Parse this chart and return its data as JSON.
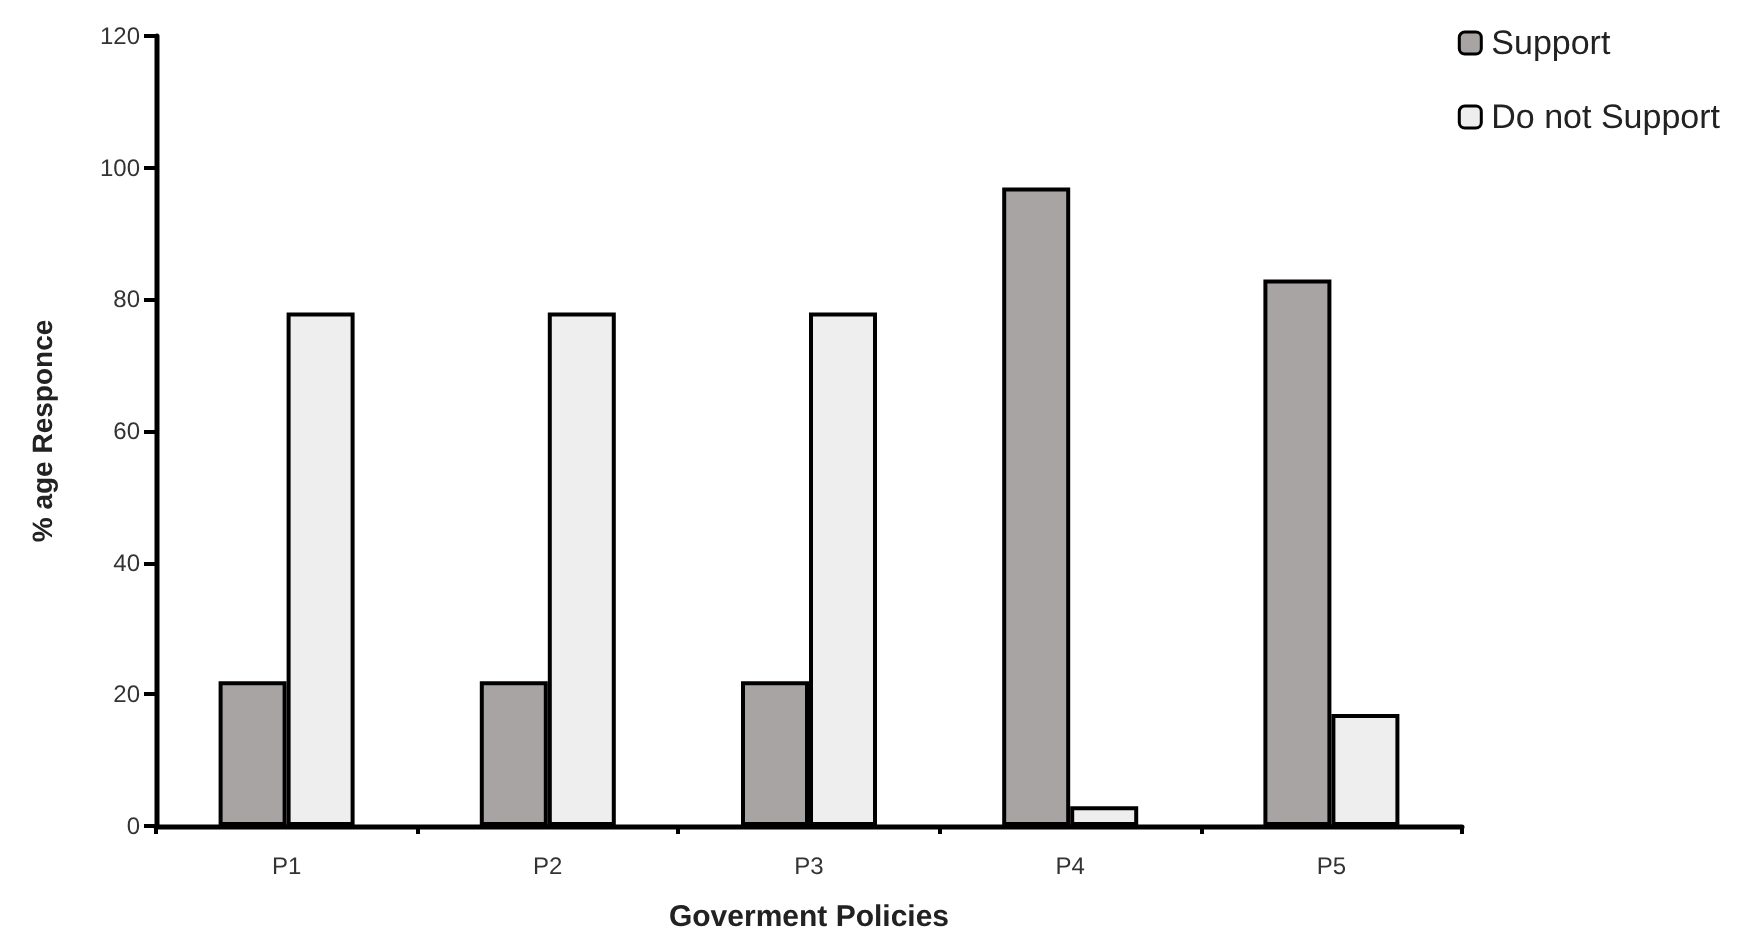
{
  "chart_data": {
    "type": "bar",
    "xlabel": "Goverment Policies",
    "ylabel": "% age Responce",
    "categories": [
      "P1",
      "P2",
      "P3",
      "P4",
      "P5"
    ],
    "series": [
      {
        "name": "Support",
        "color": "#a8a4a4",
        "values": [
          22,
          22,
          22,
          97,
          83
        ]
      },
      {
        "name": "Do not Support",
        "color": "#eeeeee",
        "values": [
          78,
          78,
          78,
          3,
          17
        ]
      }
    ],
    "ylim": [
      0,
      120
    ],
    "yticks": [
      0,
      20,
      40,
      60,
      80,
      100,
      120
    ],
    "grid": false,
    "legend": "top right"
  }
}
